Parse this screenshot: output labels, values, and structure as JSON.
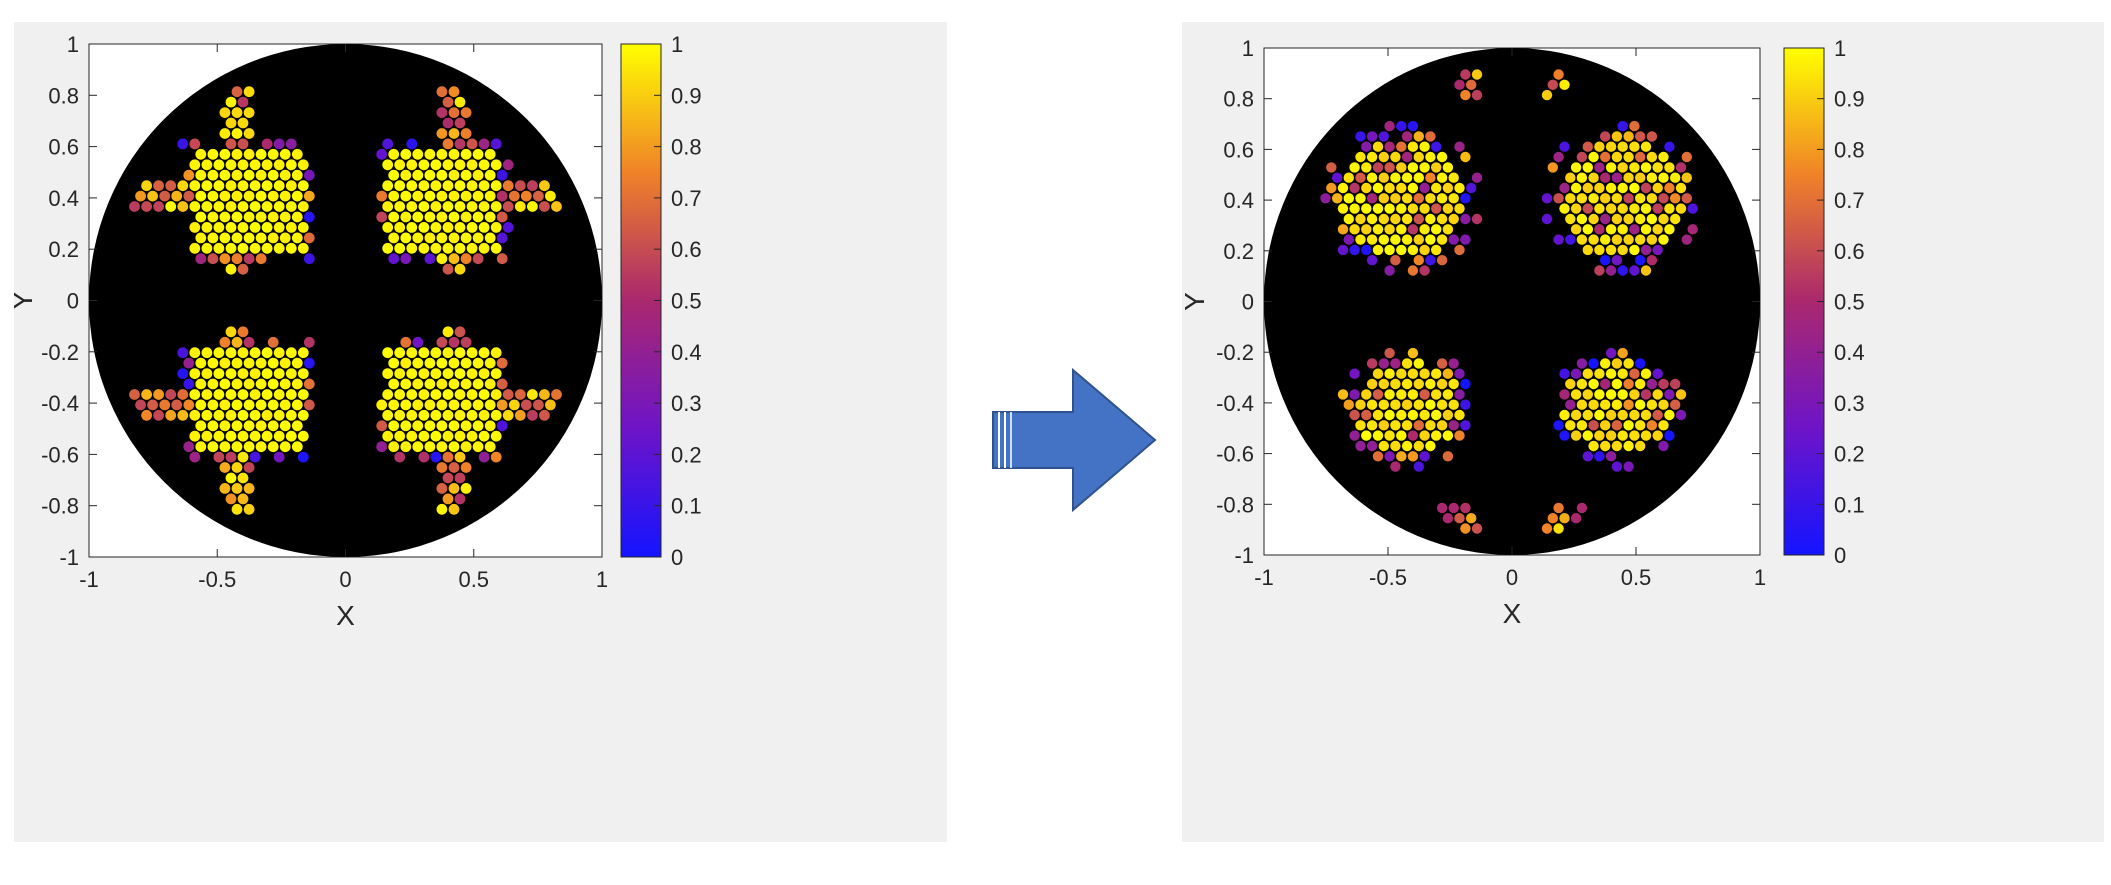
{
  "chart_data": [
    {
      "type": "scatter",
      "panel": "left",
      "xlabel": "X",
      "ylabel": "Y",
      "xlim": [
        -1,
        1
      ],
      "ylim": [
        -1,
        1
      ],
      "xticks": [
        "-1",
        "-0.5",
        "0",
        "0.5",
        "1"
      ],
      "yticks": [
        "1",
        "0.8",
        "0.6",
        "0.4",
        "0.2",
        "0",
        "-0.2",
        "-0.4",
        "-0.6",
        "-0.8",
        "-1"
      ],
      "background_disk": "black unit circle",
      "marker": "hexagonal cells colored by value",
      "colorbar": {
        "ticks": [
          "1",
          "0.9",
          "0.8",
          "0.7",
          "0.6",
          "0.5",
          "0.4",
          "0.3",
          "0.2",
          "0.1",
          "0"
        ],
        "range": [
          0,
          1
        ],
        "colormap": "blue-purple-orange-yellow"
      },
      "grid": "off",
      "regions": [
        {
          "name": "quadrant-upper-left",
          "center": [
            -0.38,
            0.4
          ],
          "value": 1.0
        },
        {
          "name": "quadrant-upper-right",
          "center": [
            0.38,
            0.4
          ],
          "value": 1.0
        },
        {
          "name": "quadrant-lower-left",
          "center": [
            -0.38,
            -0.4
          ],
          "value": 1.0
        },
        {
          "name": "quadrant-lower-right",
          "center": [
            0.38,
            -0.4
          ],
          "value": 1.0
        }
      ]
    },
    {
      "type": "scatter",
      "panel": "right",
      "xlabel": "X",
      "ylabel": "Y",
      "xlim": [
        -1,
        1
      ],
      "ylim": [
        -1,
        1
      ],
      "xticks": [
        "-1",
        "-0.5",
        "0",
        "0.5",
        "1"
      ],
      "yticks": [
        "1",
        "0.8",
        "0.6",
        "0.4",
        "0.2",
        "0",
        "-0.2",
        "-0.4",
        "-0.6",
        "-0.8",
        "-1"
      ],
      "background_disk": "black unit circle",
      "marker": "hexagonal cells colored by value",
      "colorbar": {
        "ticks": [
          "1",
          "0.9",
          "0.8",
          "0.7",
          "0.6",
          "0.5",
          "0.4",
          "0.3",
          "0.2",
          "0.1",
          "0"
        ],
        "range": [
          0,
          1
        ],
        "colormap": "blue-purple-orange-yellow"
      },
      "grid": "off",
      "regions": [
        {
          "name": "upper-left",
          "center": [
            -0.45,
            0.38
          ],
          "value": 0.95
        },
        {
          "name": "upper-right",
          "center": [
            0.45,
            0.38
          ],
          "value": 0.95
        },
        {
          "name": "lower-left",
          "center": [
            -0.42,
            -0.4
          ],
          "value": 0.85
        },
        {
          "name": "lower-right",
          "center": [
            0.42,
            -0.4
          ],
          "value": 0.85
        }
      ]
    }
  ],
  "colors": {
    "panel_bg": "#f0f0f0",
    "axes_bg": "#ffffff",
    "disk": "#000000",
    "arrow_fill": "#4472c4",
    "arrow_stroke": "#2f528f"
  },
  "arrow": {
    "icon": "right-arrow-icon"
  }
}
